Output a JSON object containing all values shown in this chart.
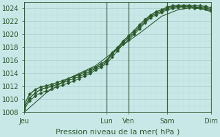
{
  "title": "",
  "xlabel": "Pression niveau de la mer( hPa )",
  "ylabel": "",
  "bg_color": "#c8e8e8",
  "grid_color_major": "#aacccc",
  "grid_color_minor": "#bbdddd",
  "line_color": "#2d5a2d",
  "vline_color": "#3a5a3a",
  "ylim": [
    1008,
    1025
  ],
  "yticks": [
    1008,
    1010,
    1012,
    1014,
    1016,
    1018,
    1020,
    1022,
    1024
  ],
  "xtick_labels": [
    "Jeu",
    "Lun",
    "Ven",
    "Sam",
    "Dim"
  ],
  "xtick_positions": [
    0,
    15,
    19,
    26,
    34
  ],
  "vline_positions": [
    0,
    15,
    19,
    26,
    34
  ],
  "xlim": [
    0,
    34
  ],
  "lines": [
    {
      "x": [
        0,
        1,
        2,
        3,
        4,
        5,
        6,
        7,
        8,
        9,
        10,
        11,
        12,
        13,
        14,
        15,
        16,
        17,
        18,
        19,
        20,
        21,
        22,
        23,
        24,
        25,
        26,
        27,
        28,
        29,
        30,
        31,
        32,
        33,
        34
      ],
      "y": [
        1009.2,
        1010.8,
        1011.5,
        1011.9,
        1012.1,
        1012.3,
        1012.6,
        1012.9,
        1013.2,
        1013.5,
        1013.8,
        1014.2,
        1014.6,
        1015.0,
        1015.5,
        1016.0,
        1017.2,
        1018.0,
        1019.0,
        1019.8,
        1020.6,
        1021.5,
        1022.3,
        1023.0,
        1023.5,
        1023.8,
        1024.2,
        1024.4,
        1024.5,
        1024.5,
        1024.5,
        1024.4,
        1024.4,
        1024.3,
        1024.1
      ],
      "marker": "D",
      "linestyle": "-",
      "linewidth": 1.0,
      "markersize": 2.5
    },
    {
      "x": [
        0,
        1,
        2,
        3,
        4,
        5,
        6,
        7,
        8,
        9,
        10,
        11,
        12,
        13,
        14,
        15,
        16,
        17,
        18,
        19,
        20,
        21,
        22,
        23,
        24,
        25,
        26,
        27,
        28,
        29,
        30,
        31,
        32,
        33,
        34
      ],
      "y": [
        1008.8,
        1010.2,
        1011.0,
        1011.5,
        1011.8,
        1012.0,
        1012.3,
        1012.6,
        1012.9,
        1013.2,
        1013.5,
        1013.9,
        1014.3,
        1014.8,
        1015.2,
        1015.8,
        1017.0,
        1017.8,
        1018.8,
        1019.5,
        1020.3,
        1021.2,
        1022.0,
        1022.8,
        1023.2,
        1023.6,
        1024.0,
        1024.2,
        1024.3,
        1024.3,
        1024.3,
        1024.2,
        1024.2,
        1024.1,
        1023.8
      ],
      "marker": "D",
      "linestyle": "-",
      "linewidth": 1.0,
      "markersize": 2.5
    },
    {
      "x": [
        0,
        1,
        2,
        3,
        4,
        5,
        6,
        7,
        8,
        9,
        10,
        11,
        12,
        13,
        14,
        15,
        16,
        17,
        18,
        19,
        20,
        21,
        22,
        23,
        24,
        25,
        26,
        27,
        28,
        29,
        30,
        31,
        32,
        33,
        34
      ],
      "y": [
        1008.5,
        1009.8,
        1010.5,
        1011.0,
        1011.3,
        1011.6,
        1011.9,
        1012.2,
        1012.5,
        1012.8,
        1013.2,
        1013.6,
        1014.0,
        1014.5,
        1015.0,
        1015.5,
        1016.5,
        1017.5,
        1018.5,
        1019.2,
        1020.0,
        1020.9,
        1021.8,
        1022.6,
        1023.0,
        1023.4,
        1023.8,
        1024.0,
        1024.1,
        1024.1,
        1024.1,
        1024.0,
        1024.0,
        1023.9,
        1023.6
      ],
      "marker": "D",
      "linestyle": "-",
      "linewidth": 0.8,
      "markersize": 2.5
    },
    {
      "x": [
        0,
        4,
        8,
        13,
        17,
        21,
        25,
        28,
        31,
        34
      ],
      "y": [
        1008.0,
        1011.0,
        1013.2,
        1015.2,
        1017.8,
        1020.2,
        1022.8,
        1023.8,
        1024.2,
        1023.5
      ],
      "marker": null,
      "linestyle": "-",
      "linewidth": 0.8,
      "markersize": 0
    }
  ],
  "tick_fontsize": 7,
  "xlabel_fontsize": 8,
  "axis_color": "#2d5a2d"
}
